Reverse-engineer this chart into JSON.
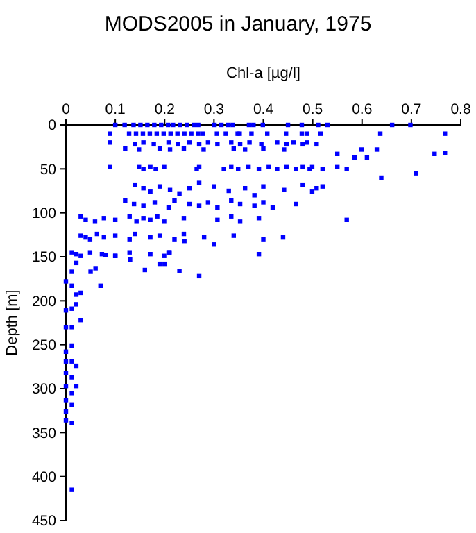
{
  "chart_data": {
    "type": "scatter",
    "title": "MODS2005 in January, 1975",
    "xlabel": "Chl-a [µg/l]",
    "ylabel": "Depth [m]",
    "xlim": [
      0,
      0.8
    ],
    "xticks": [
      0,
      0.1,
      0.2,
      0.3,
      0.4,
      0.5,
      0.6,
      0.7,
      0.8
    ],
    "ylim": [
      450,
      0
    ],
    "yticks": [
      0,
      50,
      100,
      150,
      200,
      250,
      300,
      350,
      400,
      450
    ],
    "grid": false,
    "marker": "square",
    "series": [
      {
        "color": "#0000ff",
        "x": [
          0.1,
          0.119,
          0.137,
          0.151,
          0.165,
          0.179,
          0.193,
          0.207,
          0.217,
          0.231,
          0.245,
          0.259,
          0.268,
          0.301,
          0.315,
          0.329,
          0.338,
          0.371,
          0.38,
          0.399,
          0.45,
          0.478,
          0.511,
          0.53,
          0.661,
          0.698,
          0.089,
          0.128,
          0.142,
          0.156,
          0.17,
          0.184,
          0.198,
          0.212,
          0.226,
          0.24,
          0.254,
          0.268,
          0.277,
          0.306,
          0.324,
          0.348,
          0.352,
          0.376,
          0.408,
          0.446,
          0.478,
          0.488,
          0.516,
          0.637,
          0.768,
          0.089,
          0.14,
          0.157,
          0.178,
          0.208,
          0.227,
          0.25,
          0.27,
          0.288,
          0.307,
          0.335,
          0.353,
          0.372,
          0.396,
          0.428,
          0.447,
          0.461,
          0.48,
          0.489,
          0.508,
          0.12,
          0.148,
          0.19,
          0.211,
          0.239,
          0.279,
          0.34,
          0.363,
          0.4,
          0.442,
          0.599,
          0.63,
          0.55,
          0.585,
          0.61,
          0.747,
          0.768,
          0.089,
          0.148,
          0.157,
          0.171,
          0.182,
          0.199,
          0.265,
          0.27,
          0.32,
          0.335,
          0.349,
          0.37,
          0.391,
          0.411,
          0.428,
          0.447,
          0.466,
          0.48,
          0.494,
          0.499,
          0.52,
          0.55,
          0.569,
          0.709,
          0.639,
          0.14,
          0.157,
          0.171,
          0.19,
          0.211,
          0.23,
          0.25,
          0.27,
          0.3,
          0.33,
          0.363,
          0.382,
          0.4,
          0.442,
          0.48,
          0.499,
          0.508,
          0.52,
          0.12,
          0.138,
          0.157,
          0.18,
          0.208,
          0.22,
          0.25,
          0.27,
          0.288,
          0.307,
          0.335,
          0.353,
          0.382,
          0.4,
          0.419,
          0.466,
          0.03,
          0.04,
          0.059,
          0.077,
          0.1,
          0.129,
          0.143,
          0.157,
          0.171,
          0.185,
          0.199,
          0.239,
          0.307,
          0.335,
          0.353,
          0.391,
          0.569,
          0.03,
          0.04,
          0.049,
          0.063,
          0.077,
          0.1,
          0.129,
          0.14,
          0.171,
          0.19,
          0.22,
          0.239,
          0.28,
          0.34,
          0.4,
          0.44,
          0.012,
          0.021,
          0.03,
          0.049,
          0.073,
          0.1,
          0.129,
          0.171,
          0.199,
          0.208,
          0.391,
          0.3,
          0.27,
          0.23,
          0.19,
          0.2,
          0.16,
          0.13,
          0.24,
          0.21,
          0.1,
          0.08,
          0.05,
          0.06,
          0.07,
          0.03,
          0.03,
          0.02,
          0,
          0,
          0.012,
          0.012,
          0,
          0,
          0.012,
          0,
          0,
          0.012,
          0,
          0,
          0.012,
          0,
          0.012,
          0.012,
          0.021,
          0.021,
          0.012,
          0.021,
          0.012,
          0,
          0.012,
          0.021,
          0.012
        ],
        "values": [
          0,
          0,
          0,
          0,
          0,
          0,
          0,
          0,
          0,
          0,
          0,
          0,
          0,
          0,
          0,
          0,
          0,
          0,
          0,
          0,
          0,
          0,
          0,
          0,
          0,
          0,
          10,
          10,
          10,
          10,
          10,
          10,
          10,
          10,
          10,
          10,
          10,
          10,
          10,
          10,
          10,
          10,
          10,
          10,
          10,
          10,
          10,
          10,
          10,
          10,
          10,
          20,
          22,
          20,
          22,
          20,
          22,
          20,
          22,
          20,
          22,
          20,
          22,
          20,
          22,
          20,
          22,
          20,
          22,
          20,
          22,
          27,
          28,
          27,
          28,
          27,
          28,
          27,
          28,
          27,
          28,
          28,
          28,
          33,
          37,
          37,
          33,
          32,
          48,
          48,
          50,
          48,
          50,
          48,
          50,
          48,
          50,
          48,
          50,
          48,
          50,
          48,
          50,
          48,
          50,
          48,
          50,
          48,
          50,
          48,
          50,
          55,
          60,
          68,
          72,
          76,
          70,
          74,
          78,
          72,
          66,
          70,
          75,
          72,
          80,
          70,
          74,
          68,
          76,
          72,
          70,
          86,
          90,
          92,
          88,
          94,
          86,
          90,
          92,
          88,
          94,
          86,
          90,
          92,
          88,
          94,
          90,
          104,
          108,
          110,
          106,
          108,
          104,
          110,
          106,
          108,
          104,
          110,
          106,
          108,
          104,
          110,
          106,
          108,
          126,
          128,
          130,
          124,
          128,
          126,
          130,
          124,
          128,
          126,
          130,
          124,
          128,
          126,
          130,
          128,
          145,
          147,
          149,
          145,
          147,
          149,
          145,
          147,
          149,
          145,
          147,
          136,
          172,
          166,
          158,
          158,
          165,
          153,
          132,
          145,
          149,
          148,
          167,
          163,
          183,
          222,
          191,
          204,
          211,
          230,
          230,
          251,
          258,
          269,
          269,
          282,
          297,
          287,
          313,
          326,
          318,
          336,
          339,
          305,
          297,
          274,
          209,
          193,
          183,
          178,
          167,
          157,
          415
        ]
      }
    ]
  }
}
